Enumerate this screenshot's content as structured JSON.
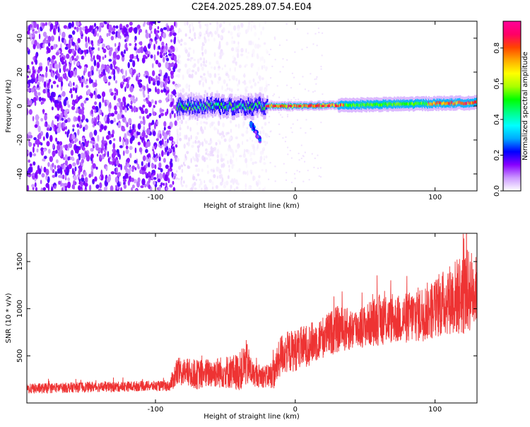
{
  "title": "C2E4.2025.289.07.54.E04",
  "chart_data": [
    {
      "type": "heatmap",
      "xlabel": "Height of straight line (km)",
      "ylabel": "Frequency (Hz)",
      "xlim": [
        -192,
        130
      ],
      "ylim": [
        -50,
        50
      ],
      "xticks": [
        -100,
        0,
        100
      ],
      "yticks": [
        -40,
        -20,
        0,
        20,
        40
      ],
      "colorbar": {
        "label": "Normalized spectral amplitude",
        "range": [
          0,
          0.95
        ],
        "ticks": [
          0.0,
          0.2,
          0.4,
          0.6,
          0.8
        ],
        "colors": [
          "#ffffff",
          "#cc99ff",
          "#8800ff",
          "#0000ff",
          "#00aaff",
          "#00ffff",
          "#00ff88",
          "#00ff00",
          "#aaff00",
          "#ffff00",
          "#ffaa00",
          "#ff4400",
          "#ff0066",
          "#ff0099"
        ]
      },
      "features": [
        {
          "name": "broadband noise",
          "x_range": [
            -192,
            -85
          ],
          "amplitude": 0.12
        },
        {
          "name": "faint noise",
          "x_range": [
            -85,
            -20
          ],
          "amplitude": 0.03
        },
        {
          "name": "narrow band near 0 Hz",
          "x_range": [
            -85,
            130
          ],
          "center_hz": [
            0,
            2
          ],
          "peak_amplitude": 0.9
        },
        {
          "name": "feature",
          "x_range": [
            -32,
            -25
          ],
          "frequency_hz": [
            -10,
            -20
          ],
          "amplitude": 0.2
        }
      ]
    },
    {
      "type": "line",
      "xlabel": "Height of straight line (km)",
      "ylabel": "SNR (10 * v/v)",
      "xlim": [
        -192,
        130
      ],
      "ylim": [
        0,
        1800
      ],
      "xticks": [
        -100,
        0,
        100
      ],
      "yticks": [
        500,
        1000,
        1500
      ],
      "series": [
        {
          "color": "#ee3333",
          "x": [
            -192,
            -170,
            -150,
            -130,
            -110,
            -90,
            -85,
            -80,
            -70,
            -60,
            -50,
            -40,
            -35,
            -30,
            -20,
            -15,
            -10,
            0,
            10,
            20,
            30,
            40,
            50,
            60,
            70,
            80,
            90,
            100,
            110,
            120,
            125,
            130
          ],
          "y": [
            150,
            160,
            170,
            170,
            180,
            180,
            320,
            330,
            300,
            320,
            330,
            330,
            420,
            300,
            280,
            320,
            520,
            560,
            620,
            700,
            780,
            780,
            820,
            880,
            880,
            900,
            950,
            1000,
            1100,
            1150,
            1200,
            1200
          ],
          "spread": [
            110,
            110,
            110,
            110,
            110,
            110,
            320,
            300,
            320,
            320,
            350,
            400,
            500,
            250,
            250,
            350,
            450,
            450,
            450,
            450,
            500,
            450,
            450,
            550,
            500,
            550,
            600,
            650,
            750,
            900,
            900,
            700
          ]
        }
      ]
    }
  ]
}
